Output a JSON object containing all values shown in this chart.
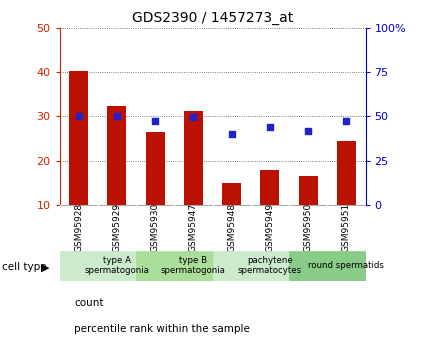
{
  "title": "GDS2390 / 1457273_at",
  "categories": [
    "GSM95928",
    "GSM95929",
    "GSM95930",
    "GSM95947",
    "GSM95948",
    "GSM95949",
    "GSM95950",
    "GSM95951"
  ],
  "counts": [
    40.2,
    32.3,
    26.5,
    31.2,
    15.0,
    18.0,
    16.5,
    24.5
  ],
  "percentile_ranks": [
    50.0,
    50.0,
    47.5,
    49.5,
    40.0,
    44.0,
    42.0,
    47.5
  ],
  "bar_bottom": 10,
  "ylim_left": [
    10,
    50
  ],
  "ylim_right": [
    0,
    100
  ],
  "yticks_left": [
    10,
    20,
    30,
    40,
    50
  ],
  "yticks_right": [
    0,
    25,
    50,
    75,
    100
  ],
  "ytick_labels_right": [
    "0",
    "25",
    "50",
    "75",
    "100%"
  ],
  "cell_types": [
    {
      "label": "type A\nspermatogonia",
      "start": 0,
      "end": 2,
      "color": "#cceacc"
    },
    {
      "label": "type B\nspermatogonia",
      "start": 2,
      "end": 4,
      "color": "#aade9a"
    },
    {
      "label": "pachytene\nspermatocytes",
      "start": 4,
      "end": 6,
      "color": "#cceacc"
    },
    {
      "label": "round spermatids",
      "start": 6,
      "end": 8,
      "color": "#88cc88"
    }
  ],
  "bar_color": "#bb1100",
  "dot_color": "#2222cc",
  "grid_color": "#555555",
  "tick_color_left": "#cc2200",
  "tick_color_right": "#0000cc",
  "bg_color": "#ffffff",
  "sample_bg_color": "#cccccc",
  "legend_count_color": "#bb1100",
  "legend_pct_color": "#2222cc",
  "bar_width": 0.5,
  "figsize": [
    4.25,
    3.45
  ],
  "dpi": 100
}
